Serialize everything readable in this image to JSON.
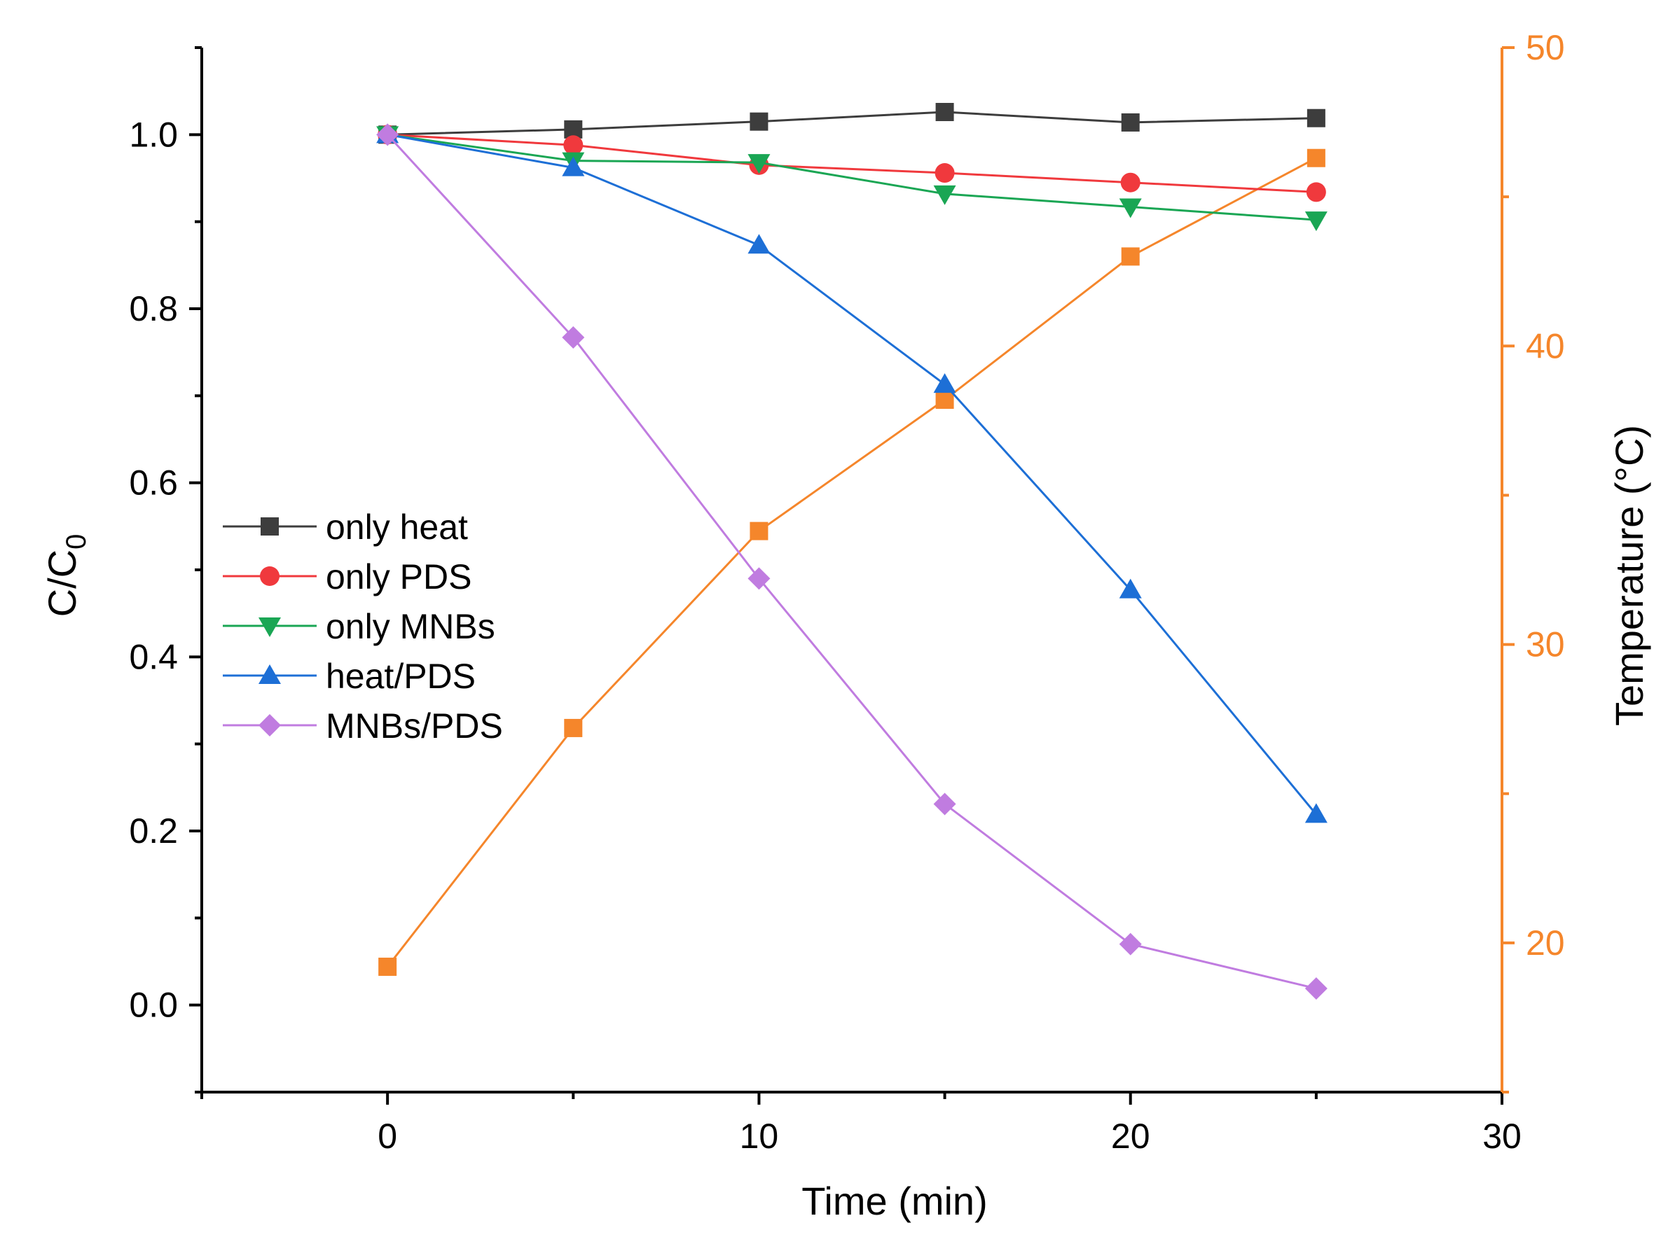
{
  "chart_data": {
    "type": "line",
    "title": "",
    "xlabel": "Time   (min)",
    "ylabel_main": "C/C",
    "ylabel_sub": "0",
    "y2label": "Temperature (°C)",
    "xlim": [
      -5,
      30
    ],
    "ylim": [
      -0.1,
      1.1
    ],
    "y2lim": [
      15,
      50
    ],
    "x_ticks": [
      0,
      10,
      20,
      30
    ],
    "x_tick_labels": [
      "0",
      "10",
      "20",
      "30"
    ],
    "y_ticks": [
      0.0,
      0.2,
      0.4,
      0.6,
      0.8,
      1.0
    ],
    "y_tick_labels": [
      "0.0",
      "0.2",
      "0.4",
      "0.6",
      "0.8",
      "1.0"
    ],
    "y2_ticks": [
      20,
      30,
      40,
      50
    ],
    "y2_tick_labels": [
      "20",
      "30",
      "40",
      "50"
    ],
    "x": [
      0,
      5,
      10,
      15,
      20,
      25
    ],
    "legend_position": "center-left",
    "axis_color": "#000000",
    "y2_axis_color": "#f5862b",
    "series": [
      {
        "name": "only heat",
        "axis": "left",
        "marker": "square",
        "color": "#3d3d3d",
        "values": [
          1.0,
          1.006,
          1.015,
          1.026,
          1.014,
          1.019
        ]
      },
      {
        "name": "only PDS",
        "axis": "left",
        "marker": "circle",
        "color": "#f0393d",
        "values": [
          1.0,
          0.988,
          0.965,
          0.956,
          0.945,
          0.934
        ]
      },
      {
        "name": "only MNBs",
        "axis": "left",
        "marker": "triangle-down",
        "color": "#1aa654",
        "values": [
          1.0,
          0.97,
          0.968,
          0.932,
          0.917,
          0.902
        ]
      },
      {
        "name": "heat/PDS",
        "axis": "left",
        "marker": "triangle-up",
        "color": "#1d6fd6",
        "values": [
          1.0,
          0.962,
          0.873,
          0.713,
          0.477,
          0.219
        ]
      },
      {
        "name": "MNBs/PDS",
        "axis": "left",
        "marker": "diamond",
        "color": "#c07ce0",
        "values": [
          1.0,
          0.767,
          0.49,
          0.231,
          0.07,
          0.019
        ]
      },
      {
        "name": "Temperature",
        "axis": "right",
        "marker": "square",
        "color": "#f5862b",
        "in_legend": false,
        "values": [
          19.2,
          27.2,
          33.8,
          38.2,
          43.0,
          46.3
        ]
      }
    ]
  }
}
